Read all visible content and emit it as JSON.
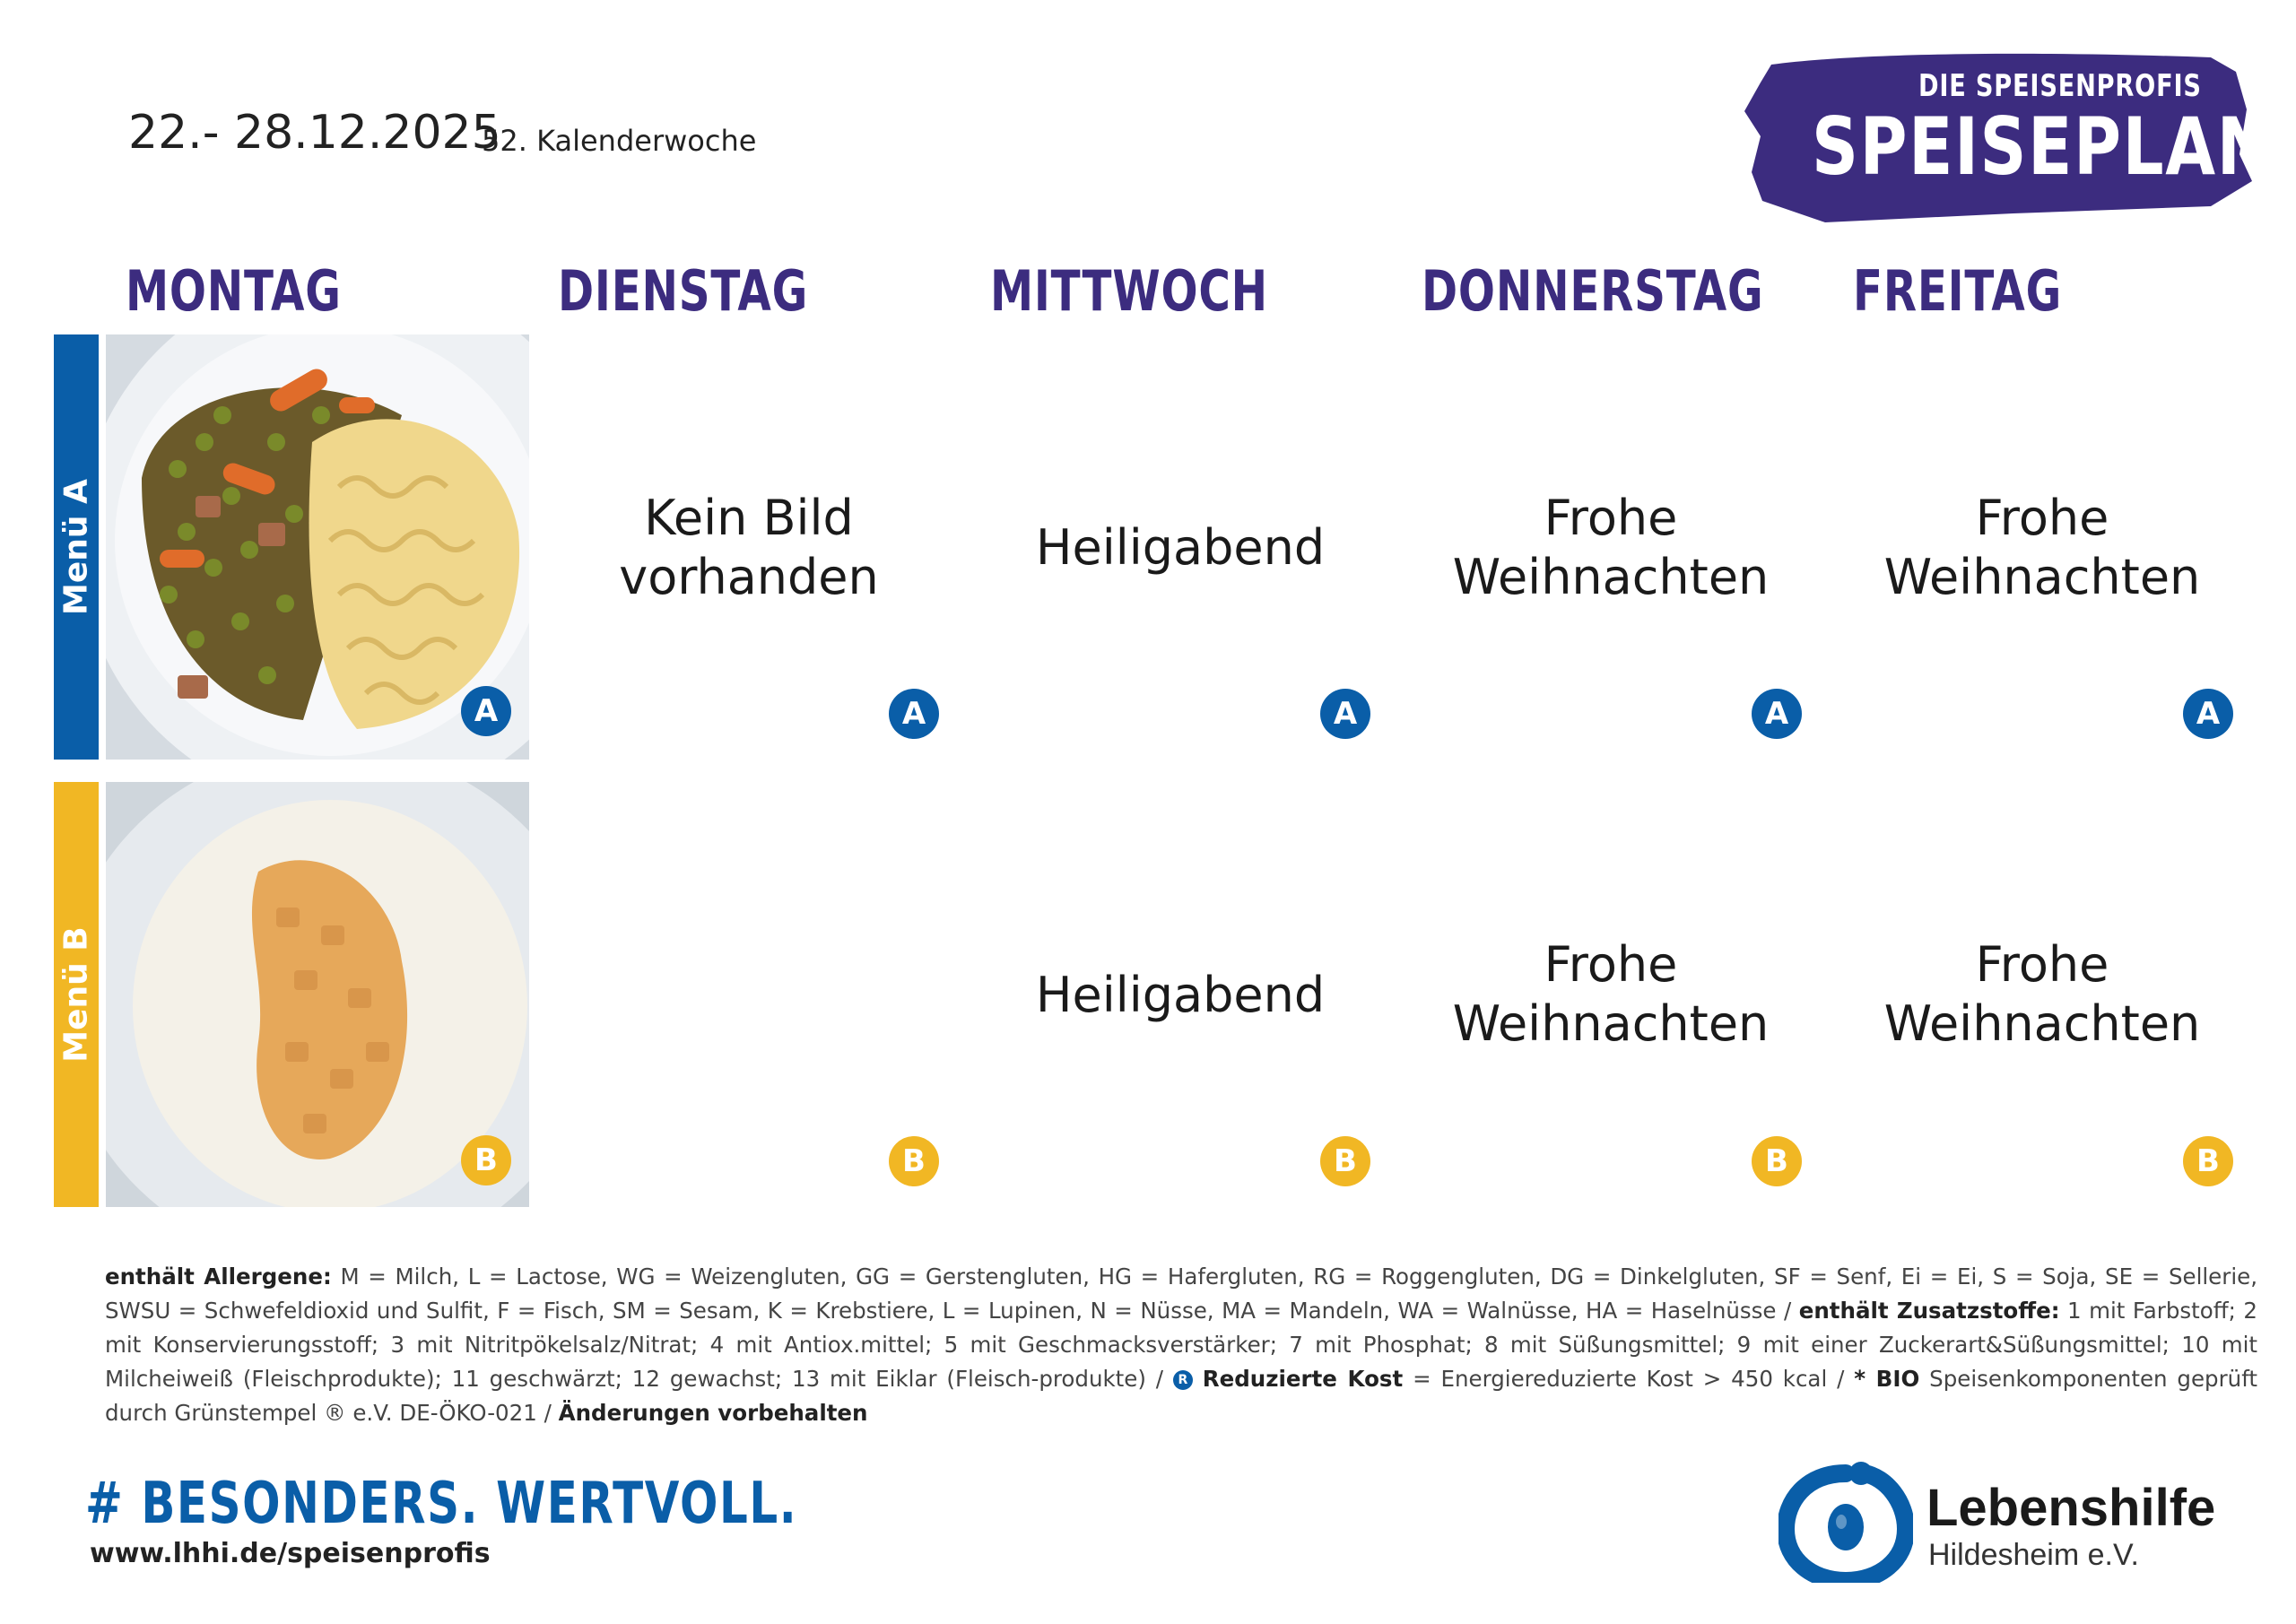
{
  "header": {
    "date_range": "22.- 28.12.2025",
    "week": "52. Kalenderwoche"
  },
  "badge": {
    "subtitle": "DIE SPEISENPROFIS",
    "title": "SPEISEPLAN"
  },
  "days": [
    "MONTAG",
    "DIENSTAG",
    "MITTWOCH",
    "DONNERSTAG",
    "FREITAG"
  ],
  "menus": {
    "a_label": "Menü A",
    "b_label": "Menü B",
    "a_badge": "A",
    "b_badge": "B"
  },
  "menu_a": {
    "dienstag": [
      "Kein Bild",
      "vorhanden"
    ],
    "mittwoch": "Heiligabend",
    "donnerstag": [
      "Frohe",
      "Weihnachten"
    ],
    "freitag": [
      "Frohe",
      "Weihnachten"
    ]
  },
  "menu_b": {
    "mittwoch": "Heiligabend",
    "donnerstag": [
      "Frohe",
      "Weihnachten"
    ],
    "freitag": [
      "Frohe",
      "Weihnachten"
    ]
  },
  "legend": {
    "allergens_label": "enthält Allergene:",
    "allergens_text": "M = Milch, L = Lactose, WG = Weizengluten, GG = Gerstengluten, HG = Hafergluten, RG = Roggengluten, DG = Dinkelgluten, SF = Senf, Ei = Ei, S = Soja, SE = Sellerie, SWSU = Schwefeldioxid und Sulfit, F = Fisch, SM = Sesam, K = Krebstiere, L = Lupinen, N = Nüsse, MA = Mandeln, WA = Walnüsse, HA =  Haselnüsse / ",
    "additives_label": "enthält Zusatzstoffe:",
    "additives_text": " 1 mit Farbstoff; 2 mit Konservierungsstoff; 3 mit Nitritpökelsalz/Nitrat; 4 mit Antiox.mittel; 5 mit Geschmacksverstärker; 7 mit Phosphat; 8 mit Süßungsmittel; 9 mit einer Zuckerart&Süßungsmittel; 10 mit Milcheiweiß (Fleischprodukte); 11 geschwärzt; 12 gewachst; 13 mit Eiklar (Fleisch-produkte) / ",
    "reduced_icon": "R",
    "reduced_label": "Reduzierte Kost",
    "reduced_text": " = Energiereduzierte Kost > 450 kcal / ",
    "bio_label": "* BIO",
    "bio_text": " Speisenkomponenten geprüft durch Grünstempel ® e.V. DE-ÖKO-021 / ",
    "changes_label": "Änderungen vorbehalten"
  },
  "footer": {
    "hashtag": "# BESONDERS. WERTVOLL.",
    "url": "www.lhhi.de/speisenprofis",
    "org_name": "Lebenshilfe",
    "org_sub": "Hildesheim e.V."
  },
  "colors": {
    "purple": "#3c2c7f",
    "blue": "#0a5ea8",
    "yellow": "#f1b724"
  }
}
